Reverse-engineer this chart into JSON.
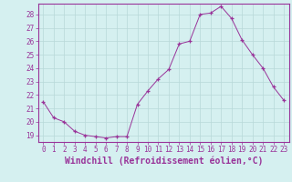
{
  "x": [
    0,
    1,
    2,
    3,
    4,
    5,
    6,
    7,
    8,
    9,
    10,
    11,
    12,
    13,
    14,
    15,
    16,
    17,
    18,
    19,
    20,
    21,
    22,
    23
  ],
  "y": [
    21.5,
    20.3,
    20.0,
    19.3,
    19.0,
    18.9,
    18.8,
    18.9,
    18.9,
    21.3,
    22.3,
    23.2,
    23.9,
    25.8,
    26.0,
    28.0,
    28.1,
    28.6,
    27.7,
    26.1,
    25.0,
    24.0,
    22.6,
    21.6
  ],
  "line_color": "#993399",
  "marker": "+",
  "marker_size": 3,
  "background_color": "#d5f0f0",
  "grid_color": "#b8d8d8",
  "xlabel": "Windchill (Refroidissement éolien,°C)",
  "xlabel_color": "#993399",
  "ylim": [
    18.5,
    28.8
  ],
  "yticks": [
    19,
    20,
    21,
    22,
    23,
    24,
    25,
    26,
    27,
    28
  ],
  "xticks": [
    0,
    1,
    2,
    3,
    4,
    5,
    6,
    7,
    8,
    9,
    10,
    11,
    12,
    13,
    14,
    15,
    16,
    17,
    18,
    19,
    20,
    21,
    22,
    23
  ],
  "tick_color": "#993399",
  "axis_color": "#993399",
  "xlabel_fontsize": 7,
  "tick_fontsize": 5.5
}
